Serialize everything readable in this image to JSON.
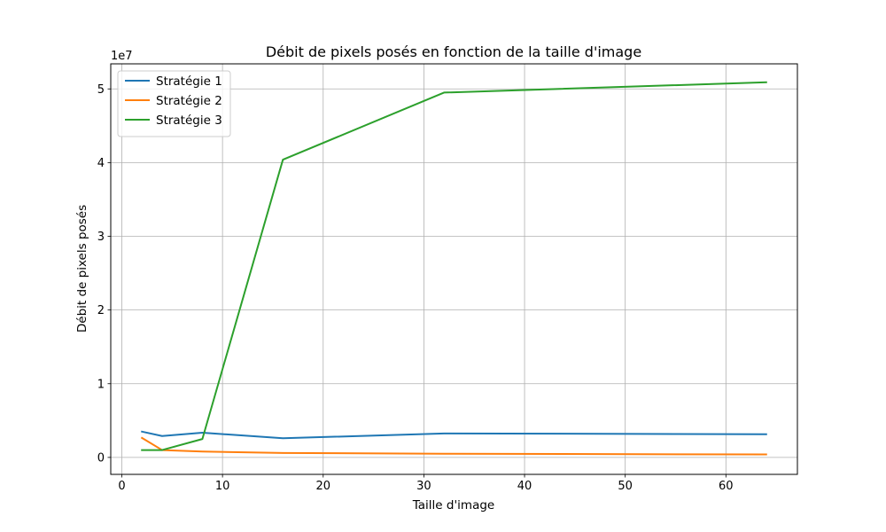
{
  "chart_data": {
    "type": "line",
    "title": "Débit de pixels posés en fonction de la taille d'image",
    "xlabel": "Taille d'image",
    "ylabel": "Débit de pixels posés",
    "y_offset_label": "1e7",
    "y_scale": 10000000,
    "xlim": [
      -1.1,
      67.1
    ],
    "ylim": [
      -2300000,
      53400000
    ],
    "x_ticks": [
      0,
      10,
      20,
      30,
      40,
      50,
      60
    ],
    "y_ticks": [
      0,
      1,
      2,
      3,
      4,
      5
    ],
    "grid": true,
    "legend_position": "upper left",
    "x": [
      2,
      4,
      8,
      16,
      32,
      64
    ],
    "series": [
      {
        "name": "Stratégie 1",
        "color": "#1f77b4",
        "values": [
          3500000,
          2900000,
          3350000,
          2600000,
          3250000,
          3150000
        ]
      },
      {
        "name": "Stratégie 2",
        "color": "#ff7f0e",
        "values": [
          2650000,
          1000000,
          800000,
          600000,
          500000,
          400000
        ]
      },
      {
        "name": "Stratégie 3",
        "color": "#2ca02c",
        "values": [
          1000000,
          1000000,
          2500000,
          40400000,
          49500000,
          50900000
        ]
      }
    ]
  }
}
